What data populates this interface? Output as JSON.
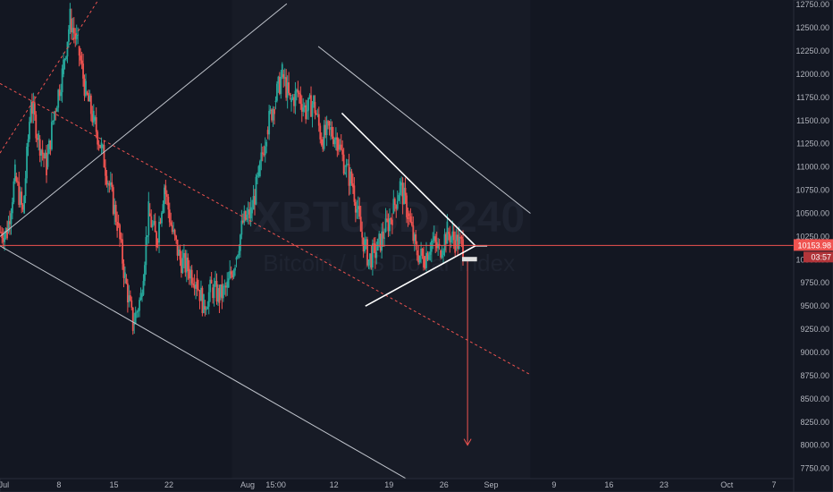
{
  "chart_data": {
    "type": "candlestick",
    "symbol_watermark": "XBTUSD, 240",
    "name_watermark": "Bitcoin / US Dollar Index",
    "y_ticks": [
      7750,
      8000,
      8250,
      8500,
      8750,
      9000,
      9250,
      9500,
      9750,
      10000,
      10250,
      10500,
      10750,
      11000,
      11250,
      11500,
      11750,
      12000,
      12250,
      12500,
      12750
    ],
    "y_tick_labels": [
      "7750.00",
      "8000.00",
      "8250.00",
      "8500.00",
      "8750.00",
      "9000.00",
      "9250.00",
      "9500.00",
      "9750.00",
      "10000.00",
      "10250.00",
      "10500.00",
      "10750.00",
      "11000.00",
      "11250.00",
      "11500.00",
      "11750.00",
      "12000.00",
      "12250.00",
      "12500.00",
      "12750.00"
    ],
    "ylim": [
      7640,
      12800
    ],
    "x_ticks": [
      {
        "label": "Jul",
        "day": 1
      },
      {
        "label": "8",
        "day": 8
      },
      {
        "label": "15",
        "day": 15
      },
      {
        "label": "22",
        "day": 22
      },
      {
        "label": "Aug",
        "day": 32
      },
      {
        "label": "15:00",
        "day": 35.6
      },
      {
        "label": "12",
        "day": 43
      },
      {
        "label": "19",
        "day": 50
      },
      {
        "label": "26",
        "day": 57
      },
      {
        "label": "Sep",
        "day": 63
      },
      {
        "label": "9",
        "day": 71
      },
      {
        "label": "16",
        "day": 78
      },
      {
        "label": "23",
        "day": 85
      },
      {
        "label": "Oct",
        "day": 93
      },
      {
        "label": "7",
        "day": 99
      }
    ],
    "xlim": [
      0.5,
      101.5
    ],
    "current_price": "10153.98",
    "countdown": "03:57",
    "colors": {
      "up": "#26a69a",
      "down": "#ef5350",
      "grid_text": "#b2b5be",
      "price_line": "#ef5350",
      "background": "#131722",
      "future_zone": "#171b26"
    },
    "candles_close": [
      [
        1,
        10300
      ],
      [
        2,
        10900
      ],
      [
        3,
        10500
      ],
      [
        4,
        11700
      ],
      [
        5,
        11300
      ],
      [
        6,
        11000
      ],
      [
        7,
        11600
      ],
      [
        8,
        12000
      ],
      [
        9,
        12600
      ],
      [
        10,
        12300
      ],
      [
        11,
        11800
      ],
      [
        12,
        11500
      ],
      [
        13,
        11200
      ],
      [
        14,
        10800
      ],
      [
        15,
        10400
      ],
      [
        16,
        9800
      ],
      [
        17,
        9300
      ],
      [
        18,
        9600
      ],
      [
        19,
        10500
      ],
      [
        20,
        10200
      ],
      [
        21,
        10800
      ],
      [
        22,
        10300
      ],
      [
        23,
        10000
      ],
      [
        24,
        9900
      ],
      [
        25,
        9800
      ],
      [
        26,
        9500
      ],
      [
        27,
        9700
      ],
      [
        28,
        9600
      ],
      [
        29,
        9700
      ],
      [
        30,
        10000
      ],
      [
        31,
        10400
      ],
      [
        32,
        10500
      ],
      [
        33,
        10900
      ],
      [
        34,
        11400
      ],
      [
        35,
        11700
      ],
      [
        36,
        12000
      ],
      [
        37,
        11700
      ],
      [
        38,
        11800
      ],
      [
        39,
        11600
      ],
      [
        40,
        11700
      ],
      [
        41,
        11300
      ],
      [
        42,
        11400
      ],
      [
        43,
        11300
      ],
      [
        44,
        11000
      ],
      [
        45,
        10800
      ],
      [
        46,
        10300
      ],
      [
        47,
        10000
      ],
      [
        48,
        10100
      ],
      [
        49,
        10300
      ],
      [
        50,
        10500
      ],
      [
        51,
        10800
      ],
      [
        52,
        10500
      ],
      [
        53,
        10100
      ],
      [
        54,
        10000
      ],
      [
        55,
        10200
      ],
      [
        56,
        10100
      ],
      [
        57,
        10300
      ],
      [
        58,
        10200
      ],
      [
        59,
        10150
      ]
    ]
  },
  "drawings": [
    {
      "type": "trendline",
      "name": "channel-upper-line",
      "from": [
        41,
        12300
      ],
      "to": [
        68,
        10500
      ],
      "color": "#c0c4cc"
    },
    {
      "type": "trendline",
      "name": "channel-lower-line",
      "from": [
        0.5,
        10150
      ],
      "to": [
        53,
        7600
      ],
      "color": "#c0c4cc"
    },
    {
      "type": "trendline",
      "name": "rising-thin-line",
      "from": [
        0.5,
        10250
      ],
      "to": [
        37,
        12760
      ],
      "color": "#c0c4cc"
    },
    {
      "type": "trendline",
      "name": "dashed-red-trend-lower",
      "from": [
        0.5,
        11900
      ],
      "to": [
        68,
        8760
      ],
      "color": "#ef5350",
      "dashed": true
    },
    {
      "type": "trendline",
      "name": "dashed-red-trend-upper",
      "from": [
        0.5,
        11150
      ],
      "to": [
        13,
        12800
      ],
      "color": "#ef5350",
      "dashed": true
    },
    {
      "type": "trendline",
      "name": "triangle-upper-edge",
      "from": [
        44,
        11580
      ],
      "to": [
        61,
        10150
      ],
      "color": "#ffffff"
    },
    {
      "type": "trendline",
      "name": "triangle-lower-edge",
      "from": [
        47,
        9500
      ],
      "to": [
        61,
        10150
      ],
      "color": "#ffffff"
    },
    {
      "type": "trendline",
      "name": "breakdown-target-arrow",
      "from": [
        60,
        10000
      ],
      "to": [
        60,
        8000
      ],
      "color": "#ef5350",
      "arrow": true
    }
  ]
}
